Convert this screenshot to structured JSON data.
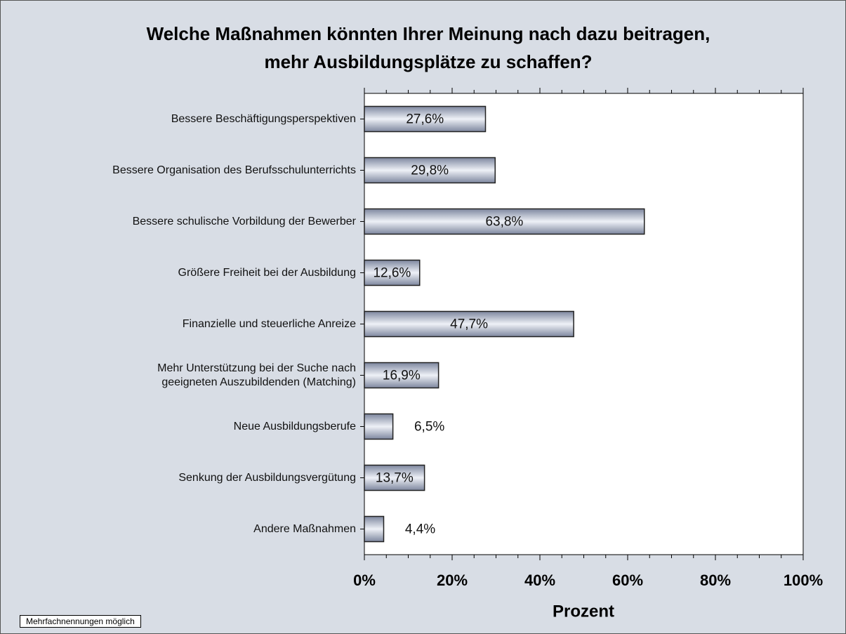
{
  "chart_data": {
    "type": "barh",
    "title": [
      "Welche Maßnahmen könnten Ihrer Meinung nach dazu beitragen,",
      "mehr Ausbildungsplätze zu schaffen?"
    ],
    "categories": [
      "Bessere Beschäftigungsperspektiven",
      "Bessere Organisation des Berufsschulunterrichts",
      "Bessere schulische Vorbildung der Bewerber",
      "Größere Freiheit bei der Ausbildung",
      "Finanzielle und steuerliche Anreize",
      "Mehr Unterstützung bei der Suche nach\ngeeigneten Auszubildenden (Matching)",
      "Neue Ausbildungsberufe",
      "Senkung der Ausbildungsvergütung",
      "Andere Maßnahmen"
    ],
    "values": [
      27.6,
      29.8,
      63.8,
      12.6,
      47.7,
      16.9,
      6.5,
      13.7,
      4.4
    ],
    "value_labels": [
      "27,6%",
      "29,8%",
      "63,8%",
      "12,6%",
      "47,7%",
      "16,9%",
      "6,5%",
      "13,7%",
      "4,4%"
    ],
    "color": "#a6aec4",
    "x_label": "Prozent",
    "xlim": [
      0,
      100
    ],
    "xticks": [
      {
        "value": 0,
        "label": "0%"
      },
      {
        "value": 20,
        "label": "20%"
      },
      {
        "value": 40,
        "label": "40%"
      },
      {
        "value": 60,
        "label": "60%"
      },
      {
        "value": 80,
        "label": "80%"
      },
      {
        "value": 100,
        "label": "100%"
      }
    ],
    "xminorticks": [
      5,
      10,
      15,
      25,
      30,
      35,
      45,
      50,
      55,
      65,
      70,
      75,
      85,
      90,
      95
    ],
    "note": "Mehrfachnennungen möglich"
  }
}
